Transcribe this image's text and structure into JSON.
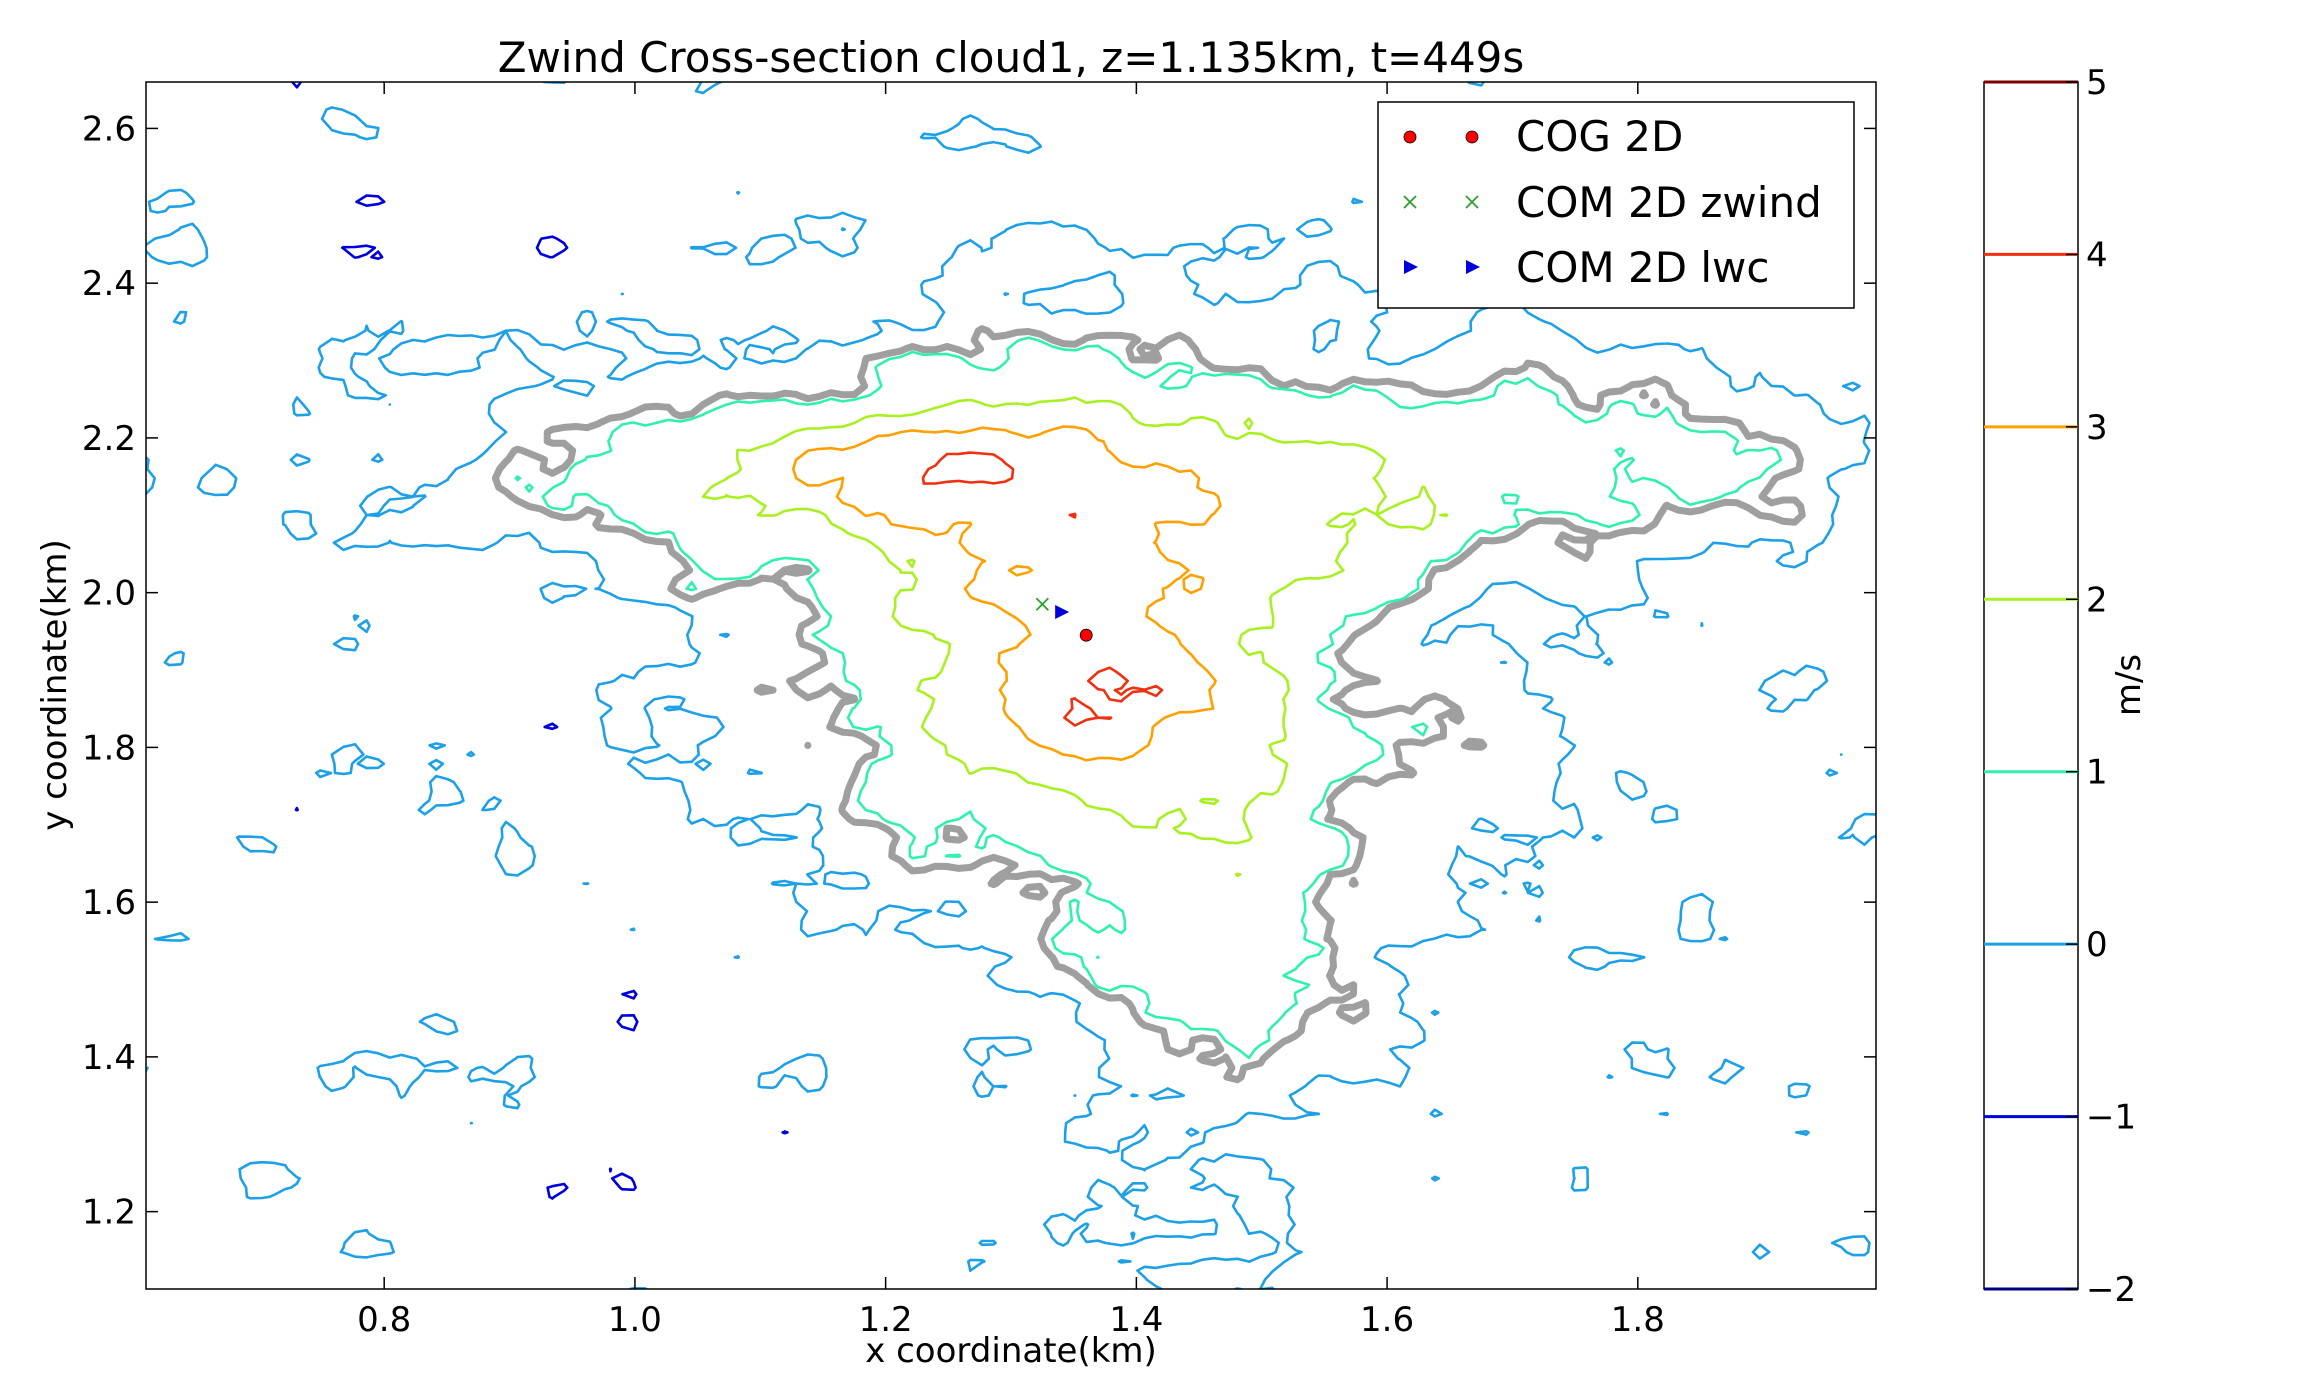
{
  "chart_data": {
    "type": "contour",
    "title": "Zwind Cross-section cloud1, z=1.135km, t=449s",
    "xlabel": "x coordinate(km)",
    "ylabel": "y coordinate(km)",
    "xlim": [
      0.61,
      1.99
    ],
    "ylim": [
      1.1,
      2.66
    ],
    "x_ticks": [
      0.8,
      1.0,
      1.2,
      1.4,
      1.6,
      1.8
    ],
    "x_tick_labels": [
      "0.8",
      "1.0",
      "1.2",
      "1.4",
      "1.6",
      "1.8"
    ],
    "y_ticks": [
      1.2,
      1.4,
      1.6,
      1.8,
      2.0,
      2.2,
      2.4,
      2.6
    ],
    "y_tick_labels": [
      "1.2",
      "1.4",
      "1.6",
      "1.8",
      "2.0",
      "2.2",
      "2.4",
      "2.6"
    ],
    "grid": false,
    "legend_position": "top-right",
    "legend": [
      {
        "label": "COG 2D",
        "marker": "circle",
        "color": "#ff0000"
      },
      {
        "label": "COM 2D zwind",
        "marker": "x",
        "color": "#2ca02c"
      },
      {
        "label": "COM 2D lwc",
        "marker": "triangle-right",
        "color": "#0000dd"
      }
    ],
    "points": [
      {
        "name": "COG 2D",
        "x": 1.36,
        "y": 1.945
      },
      {
        "name": "COM 2D zwind",
        "x": 1.325,
        "y": 1.985
      },
      {
        "name": "COM 2D lwc",
        "x": 1.34,
        "y": 1.975
      }
    ],
    "colorbar": {
      "label": "m/s",
      "min": -2,
      "max": 5,
      "ticks": [
        -2,
        -1,
        0,
        1,
        2,
        3,
        4,
        5
      ],
      "tick_labels": [
        "−2",
        "−1",
        "0",
        "1",
        "2",
        "3",
        "4",
        "5"
      ],
      "levels": [
        {
          "value": -2,
          "color": "#000080"
        },
        {
          "value": -1,
          "color": "#0000dd"
        },
        {
          "value": 0,
          "color": "#1ea0e6"
        },
        {
          "value": 1,
          "color": "#30f0b0"
        },
        {
          "value": 2,
          "color": "#a8f020"
        },
        {
          "value": 3,
          "color": "#ffa000"
        },
        {
          "value": 4,
          "color": "#f03010"
        },
        {
          "value": 5,
          "color": "#800000"
        }
      ]
    },
    "cloud_edge_color": "#7f7f7f"
  }
}
